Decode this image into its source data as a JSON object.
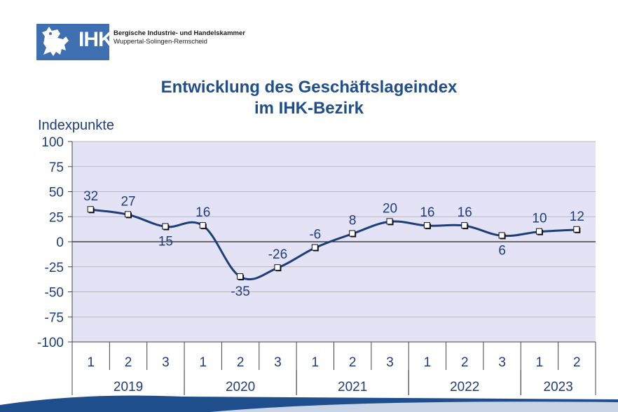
{
  "logo": {
    "mark": "IHK",
    "line1": "Bergische Industrie- und Handelskammer",
    "line2": "Wuppertal-Solingen-Remscheid",
    "emblem_icon": "heraldic-lion-icon",
    "color": "#3d6fb1"
  },
  "chart_data": {
    "type": "line",
    "title": "Entwicklung des Geschäftslageindex",
    "subtitle": "im IHK-Bezirk",
    "ylabel": "Indexpunkte",
    "xlabel": "",
    "ylim": [
      -100,
      100
    ],
    "yticks": [
      100,
      75,
      50,
      25,
      0,
      -25,
      -50,
      -75,
      -100
    ],
    "categories": [
      "1",
      "2",
      "3",
      "1",
      "2",
      "3",
      "1",
      "2",
      "3",
      "1",
      "2",
      "3",
      "1",
      "2"
    ],
    "groups": [
      {
        "label": "2019",
        "count": 3
      },
      {
        "label": "2020",
        "count": 3
      },
      {
        "label": "2021",
        "count": 3
      },
      {
        "label": "2022",
        "count": 3
      },
      {
        "label": "2023",
        "count": 2
      }
    ],
    "series": [
      {
        "values": [
          32,
          27,
          15,
          16,
          -35,
          -26,
          -6,
          8,
          20,
          16,
          16,
          6,
          10,
          12
        ],
        "color": "#1f3d7a"
      }
    ],
    "plot_background": "#e3e3f5",
    "grid": true
  }
}
